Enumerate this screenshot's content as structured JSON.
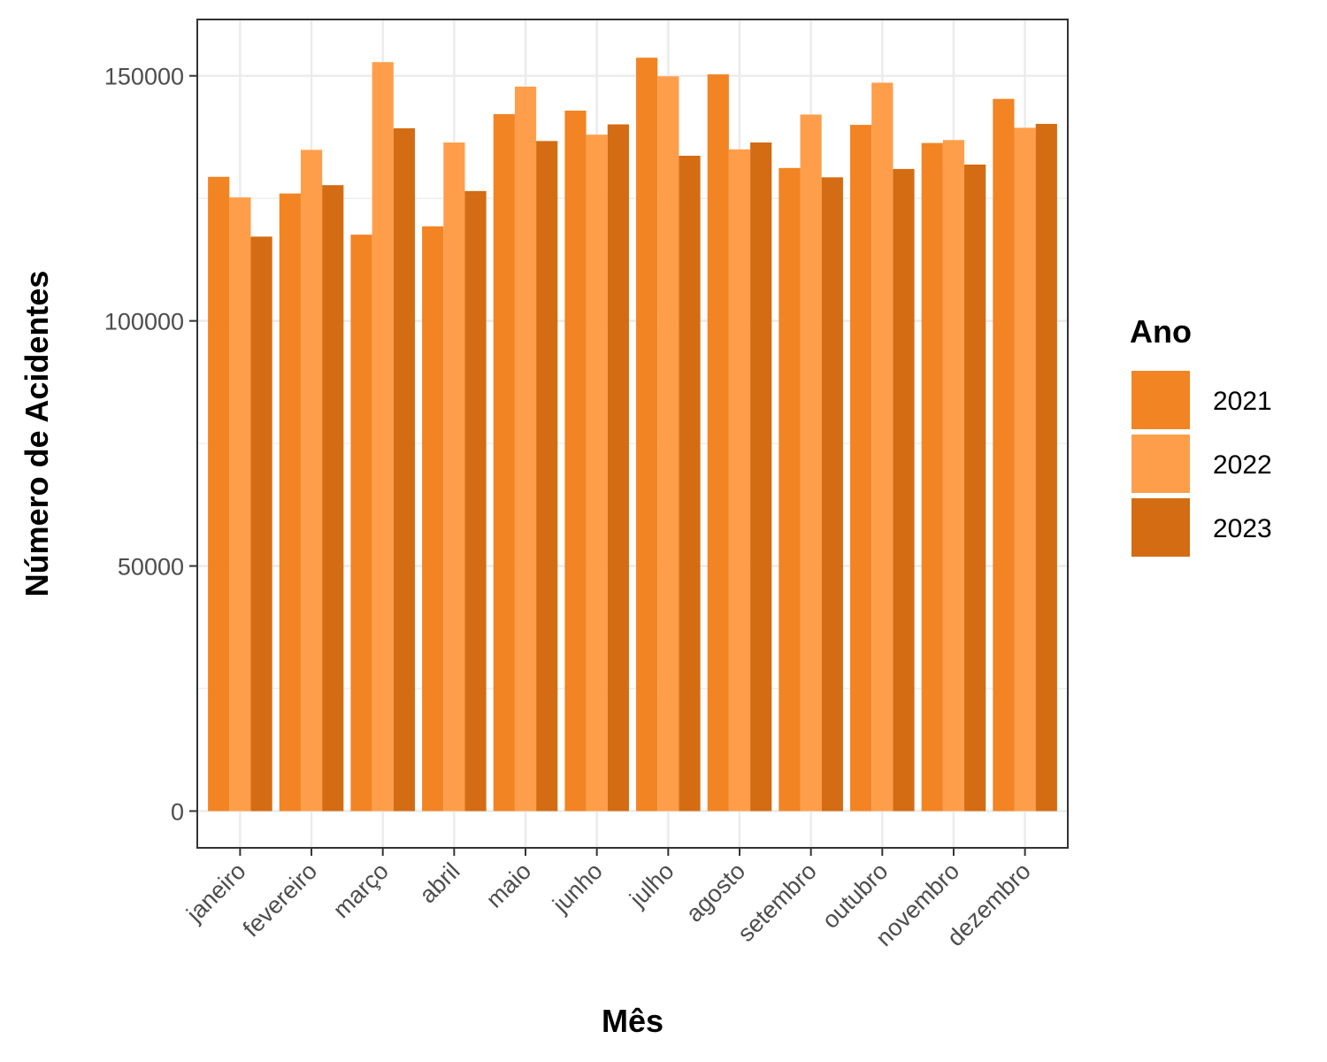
{
  "chart_data": {
    "type": "bar",
    "title": "",
    "xlabel": "Mês",
    "ylabel": "Número de Acidentes",
    "categories": [
      "janeiro",
      "fevereiro",
      "março",
      "abril",
      "maio",
      "junho",
      "julho",
      "agosto",
      "setembro",
      "outubro",
      "novembro",
      "dezembro"
    ],
    "series": [
      {
        "name": "2021",
        "color": "#F28424",
        "values": [
          129400,
          126000,
          117600,
          119300,
          142200,
          142900,
          153700,
          150300,
          131200,
          140000,
          136300,
          145300
        ]
      },
      {
        "name": "2022",
        "color": "#FF9E4A",
        "values": [
          125200,
          134900,
          152800,
          136400,
          147800,
          138000,
          149900,
          135000,
          142100,
          148600,
          136900,
          139400
        ]
      },
      {
        "name": "2023",
        "color": "#D46C14",
        "values": [
          117200,
          127700,
          139300,
          126500,
          136700,
          140100,
          133700,
          136400,
          129300,
          131000,
          131900,
          140200
        ]
      }
    ],
    "ylim": [
      -7500,
      161500
    ],
    "yticks": [
      0,
      50000,
      100000,
      150000
    ],
    "ytick_labels": [
      "0",
      "50000",
      "100000",
      "150000"
    ],
    "grid": true,
    "legend": {
      "title": "Ano",
      "position": "right"
    },
    "theme": {
      "panel_border": "#333333",
      "grid_color": "#ebebeb"
    }
  }
}
